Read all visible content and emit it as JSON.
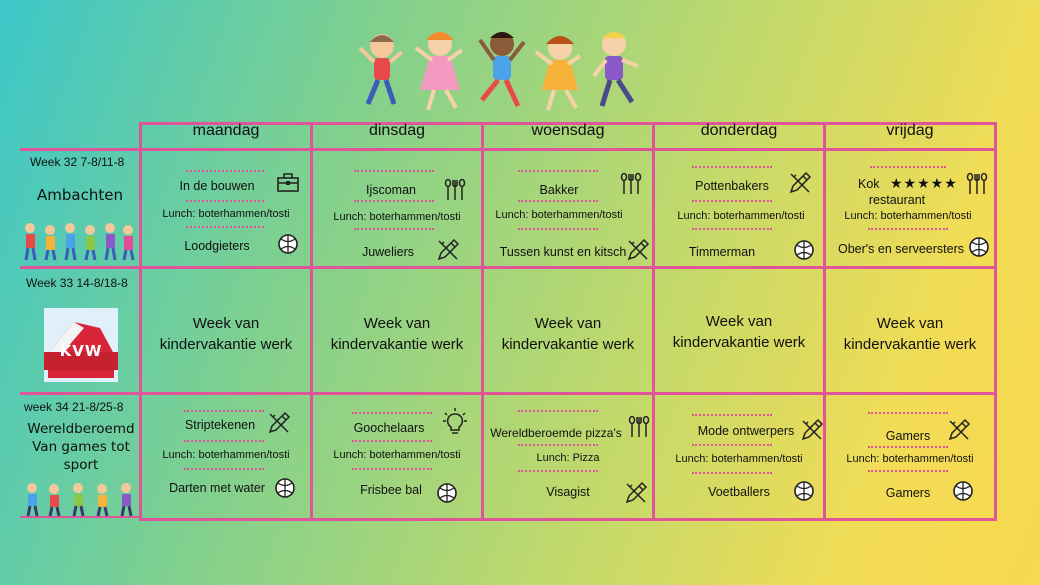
{
  "days": [
    "maandag",
    "dinsdag",
    "woensdag",
    "donderdag",
    "vrijdag"
  ],
  "weeks": [
    {
      "label": "Week 32   7-8/11-8",
      "theme": "Ambachten",
      "cells": [
        {
          "activity1": "In de bouwen",
          "icon1": "toolbox-icon",
          "lunch": "Lunch: boterhammen/tosti",
          "activity2": "Loodgieters",
          "icon2": "ball-icon"
        },
        {
          "activity1": "Ijscoman",
          "icon1": "kitchen-tools-icon",
          "lunch": "Lunch: boterhammen/tosti",
          "activity2": "Juweliers",
          "icon2": "pencil-ruler-icon"
        },
        {
          "activity1": "Bakker",
          "icon1": "kitchen-tools-icon",
          "lunch": "Lunch: boterhammen/tosti",
          "activity2": "Tussen kunst en kitsch",
          "icon2": "pencil-ruler-icon"
        },
        {
          "activity1": "Pottenbakers",
          "icon1": "pencil-ruler-icon",
          "lunch": "Lunch: boterhammen/tosti",
          "activity2": "Timmerman",
          "icon2": "ball-icon"
        },
        {
          "activity1": "Kok",
          "activity1b": "restaurant",
          "stars": "★★★★★",
          "icon1": "kitchen-tools-icon",
          "lunch": "Lunch: boterhammen/tosti",
          "activity2": "Ober's en serveersters",
          "icon2": "ball-icon"
        }
      ]
    },
    {
      "label": "Week 33   14-8/18-8",
      "theme": "",
      "logo_text": "KVW",
      "cells_line1": "Week van",
      "cells_line2": "kindervakantie werk"
    },
    {
      "label": "week 34   21-8/25-8",
      "theme_line1": "Wereldberoemd",
      "theme_line2": "Van games tot",
      "theme_line3": "sport",
      "cells": [
        {
          "activity1": "Striptekenen",
          "icon1": "pencil-ruler-icon",
          "lunch": "Lunch: boterhammen/tosti",
          "activity2": "Darten met water",
          "icon2": "ball-icon"
        },
        {
          "activity1": "Goochelaars",
          "icon1": "lightbulb-icon",
          "lunch": "Lunch: boterhammen/tosti",
          "activity2": "Frisbee bal",
          "icon2": "ball-icon"
        },
        {
          "activity1": "Wereldberoemde pizza's",
          "icon1": "kitchen-tools-icon",
          "lunch": "Lunch: Pizza",
          "activity2": "Visagist",
          "icon2": "pencil-ruler-icon"
        },
        {
          "activity1": "Mode ontwerpers",
          "icon1": "pencil-ruler-icon",
          "lunch": "Lunch: boterhammen/tosti",
          "activity2": "Voetballers",
          "icon2": "ball-icon"
        },
        {
          "activity1": "Gamers",
          "icon1": "pencil-ruler-icon",
          "lunch": "Lunch: boterhammen/tosti",
          "activity2": "Gamers",
          "icon2": "ball-icon"
        }
      ]
    }
  ],
  "colors": {
    "grid": "#e0559a",
    "text": "#111111"
  }
}
